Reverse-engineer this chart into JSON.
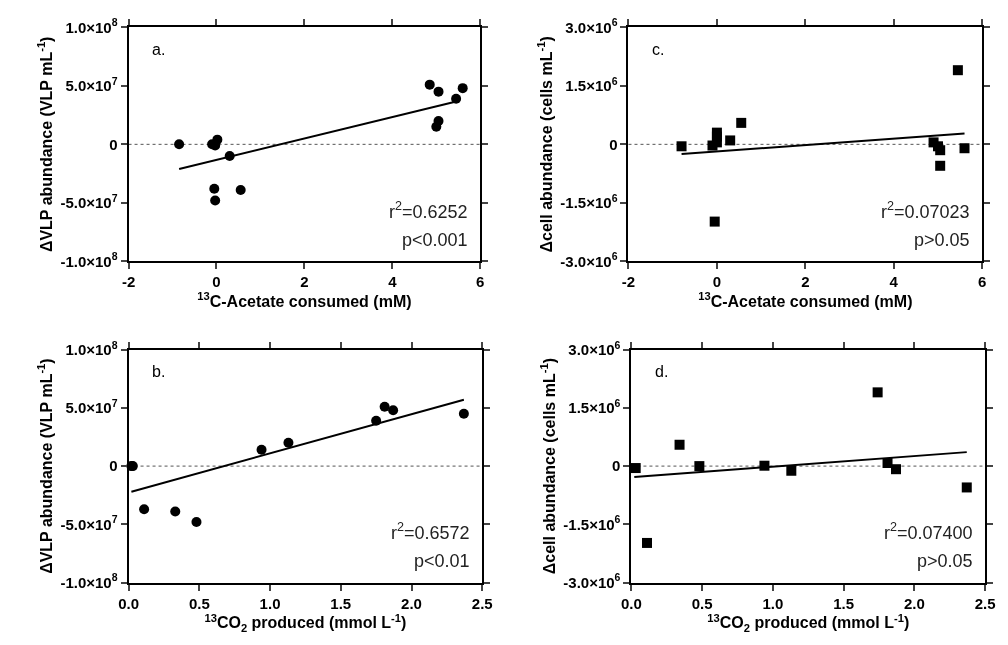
{
  "chart_data": [
    {
      "type": "scatter",
      "xlabel": "$^{13}$C-Acetate consumed (mM)",
      "ylabel": "ΔVLP abundance (VLP mL$^{-1}$)",
      "xlim": [
        -2,
        6
      ],
      "xticks": [
        -2,
        0,
        2,
        4,
        6
      ],
      "ylim": [
        -100000000,
        100000000
      ],
      "yticks": [
        {
          "value": -100000000,
          "label": "-1.0×10$^{8}$"
        },
        {
          "value": -50000000,
          "label": "-5.0×10$^{7}$"
        },
        0,
        {
          "value": 50000000,
          "label": "5.0×10$^{7}$"
        },
        {
          "value": 100000000,
          "label": "1.0×10$^{8}$"
        }
      ],
      "ref_lines": [
        {
          "axis": "y",
          "value": 0,
          "line_style": "dotted",
          "color": "#555555"
        }
      ],
      "annotations": [
        "a.",
        "r$^{2}$=0.6252",
        "p<0.001"
      ],
      "series": [
        {
          "color": "#000000",
          "marker": "circle",
          "x": [
            -0.85,
            -0.1,
            -0.03,
            0.02,
            0.3,
            -0.05,
            -0.03,
            0.55,
            4.85,
            5.05,
            5.45,
            5.6,
            5.05,
            5.0
          ],
          "values": [
            0,
            0,
            -1000000,
            4000000,
            -10000000,
            -38000000,
            -48000000,
            -39000000,
            51000000,
            45000000,
            39000000,
            48000000,
            20000000,
            15000000
          ]
        },
        {
          "type": "line",
          "marker": "none",
          "color": "#000000",
          "x": [
            -0.85,
            5.5
          ],
          "values": [
            -21000000,
            37000000
          ]
        }
      ]
    },
    {
      "type": "scatter",
      "xlabel": "$^{13}$C-Acetate consumed (mM)",
      "ylabel": "Δcell abundance (cells mL$^{-1}$)",
      "xlim": [
        -2,
        6
      ],
      "xticks": [
        -2,
        0,
        2,
        4,
        6
      ],
      "ylim": [
        -3000000,
        3000000
      ],
      "yticks": [
        {
          "value": -3000000,
          "label": "-3.0×10$^{6}$"
        },
        {
          "value": -1500000,
          "label": "-1.5×10$^{6}$"
        },
        0,
        {
          "value": 1500000,
          "label": "1.5×10$^{6}$"
        },
        {
          "value": 3000000,
          "label": "3.0×10$^{6}$"
        }
      ],
      "ref_lines": [
        {
          "axis": "y",
          "value": 0,
          "line_style": "dotted",
          "color": "#555555"
        }
      ],
      "annotations": [
        "c.",
        "r$^{2}$=0.07023",
        "p>0.05"
      ],
      "series": [
        {
          "color": "#000000",
          "marker": "square",
          "x": [
            -0.8,
            -0.1,
            0.0,
            0.0,
            0.0,
            0.3,
            0.55,
            -0.05,
            4.9,
            5.0,
            5.05,
            5.05,
            5.45,
            5.6
          ],
          "values": [
            -50000,
            -30000,
            300000,
            200000,
            50000,
            100000,
            550000,
            -1980000,
            50000,
            -50000,
            -150000,
            -550000,
            1900000,
            -100000
          ]
        },
        {
          "type": "line",
          "marker": "none",
          "color": "#000000",
          "x": [
            -0.8,
            5.6
          ],
          "values": [
            -250000,
            280000
          ]
        }
      ]
    },
    {
      "type": "scatter",
      "xlabel": "$^{13}$CO$_{2}$ produced (mmol L$^{-1}$)",
      "ylabel": "ΔVLP abundance (VLP mL$^{-1}$)",
      "xlim": [
        0,
        2.5
      ],
      "xticks": [
        {
          "value": 0,
          "label": "0.0"
        },
        0.5,
        {
          "value": 1,
          "label": "1.0"
        },
        1.5,
        {
          "value": 2,
          "label": "2.0"
        },
        2.5
      ],
      "ylim": [
        -100000000,
        100000000
      ],
      "yticks": [
        {
          "value": -100000000,
          "label": "-1.0×10$^{8}$"
        },
        {
          "value": -50000000,
          "label": "-5.0×10$^{7}$"
        },
        0,
        {
          "value": 50000000,
          "label": "5.0×10$^{7}$"
        },
        {
          "value": 100000000,
          "label": "1.0×10$^{8}$"
        }
      ],
      "ref_lines": [
        {
          "axis": "y",
          "value": 0,
          "line_style": "dotted",
          "color": "#555555"
        }
      ],
      "annotations": [
        "b.",
        "r$^{2}$=0.6572",
        "p<0.01"
      ],
      "series": [
        {
          "color": "#000000",
          "marker": "circle",
          "x": [
            0.02,
            0.03,
            0.11,
            0.33,
            0.48,
            0.94,
            1.13,
            1.75,
            1.81,
            1.87,
            2.37
          ],
          "values": [
            0,
            0,
            -37000000,
            -39000000,
            -48000000,
            14000000,
            20000000,
            39000000,
            51000000,
            48000000,
            45000000
          ]
        },
        {
          "type": "line",
          "marker": "none",
          "color": "#000000",
          "x": [
            0.02,
            2.37
          ],
          "values": [
            -22000000,
            57000000
          ]
        }
      ]
    },
    {
      "type": "scatter",
      "xlabel": "$^{13}$CO$_{2}$ produced (mmol L$^{-1}$)",
      "ylabel": "Δcell abundance (cells mL$^{-1}$)",
      "xlim": [
        0,
        2.5
      ],
      "xticks": [
        {
          "value": 0,
          "label": "0.0"
        },
        0.5,
        {
          "value": 1,
          "label": "1.0"
        },
        1.5,
        {
          "value": 2,
          "label": "2.0"
        },
        2.5
      ],
      "ylim": [
        -3000000,
        3000000
      ],
      "yticks": [
        {
          "value": -3000000,
          "label": "-3.0×10$^{6}$"
        },
        {
          "value": -1500000,
          "label": "-1.5×10$^{6}$"
        },
        0,
        {
          "value": 1500000,
          "label": "1.5×10$^{6}$"
        },
        {
          "value": 3000000,
          "label": "3.0×10$^{6}$"
        }
      ],
      "ref_lines": [
        {
          "axis": "y",
          "value": 0,
          "line_style": "dotted",
          "color": "#555555"
        }
      ],
      "annotations": [
        "d.",
        "r$^{2}$=0.07400",
        "p>0.05"
      ],
      "series": [
        {
          "color": "#000000",
          "marker": "square",
          "x": [
            0.03,
            0.11,
            0.34,
            0.48,
            0.94,
            1.13,
            1.74,
            1.81,
            1.87,
            2.37
          ],
          "values": [
            -50000,
            -1980000,
            550000,
            0,
            10000,
            -120000,
            1900000,
            80000,
            -80000,
            -550000
          ]
        },
        {
          "type": "line",
          "marker": "none",
          "color": "#000000",
          "x": [
            0.02,
            2.37
          ],
          "values": [
            -280000,
            360000
          ]
        }
      ]
    }
  ]
}
